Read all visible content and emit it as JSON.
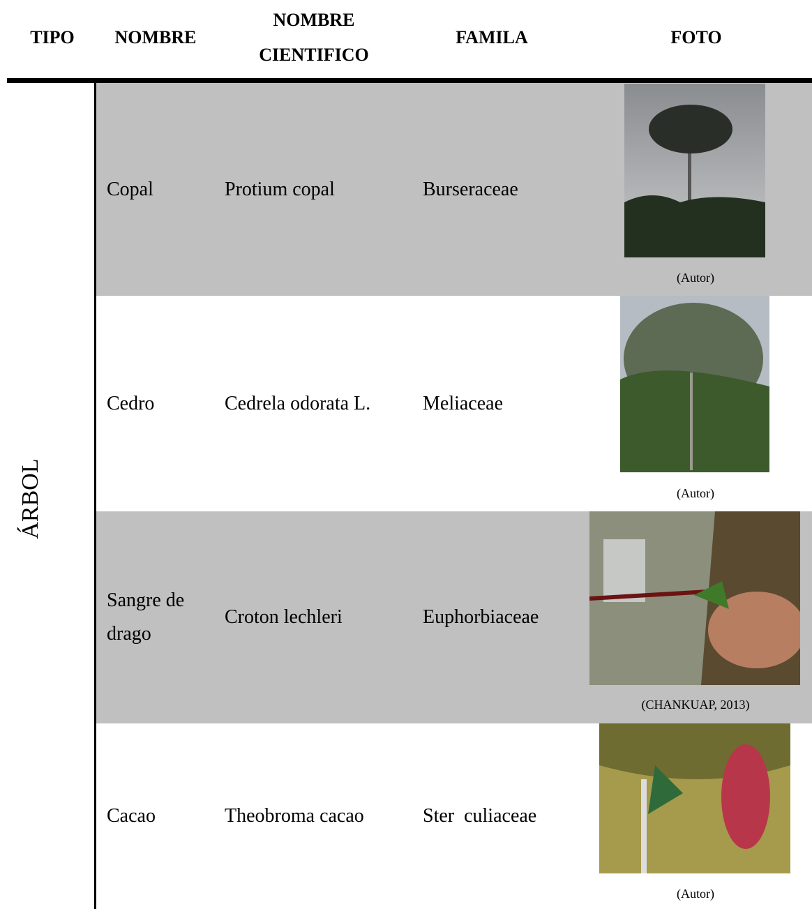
{
  "table": {
    "headers": [
      "TIPO",
      "NOMBRE",
      "NOMBRE CIENTIFICO",
      "FAMILA",
      "FOTO"
    ],
    "tipo": "ÁRBOL",
    "rows": [
      [
        "Copal",
        "Protium copal",
        "Burseraceae",
        "(Autor)"
      ],
      [
        "Cedro",
        "Cedrela odorata L.",
        "Meliaceae",
        "(Autor)"
      ],
      [
        "Sangre de drago",
        "Croton lechleri",
        "Euphorbiaceae",
        "(CHANKUAP, 2013)"
      ],
      [
        "Cacao",
        "Theobroma cacao",
        "Ster  culiaceae",
        "(Autor)"
      ]
    ]
  }
}
